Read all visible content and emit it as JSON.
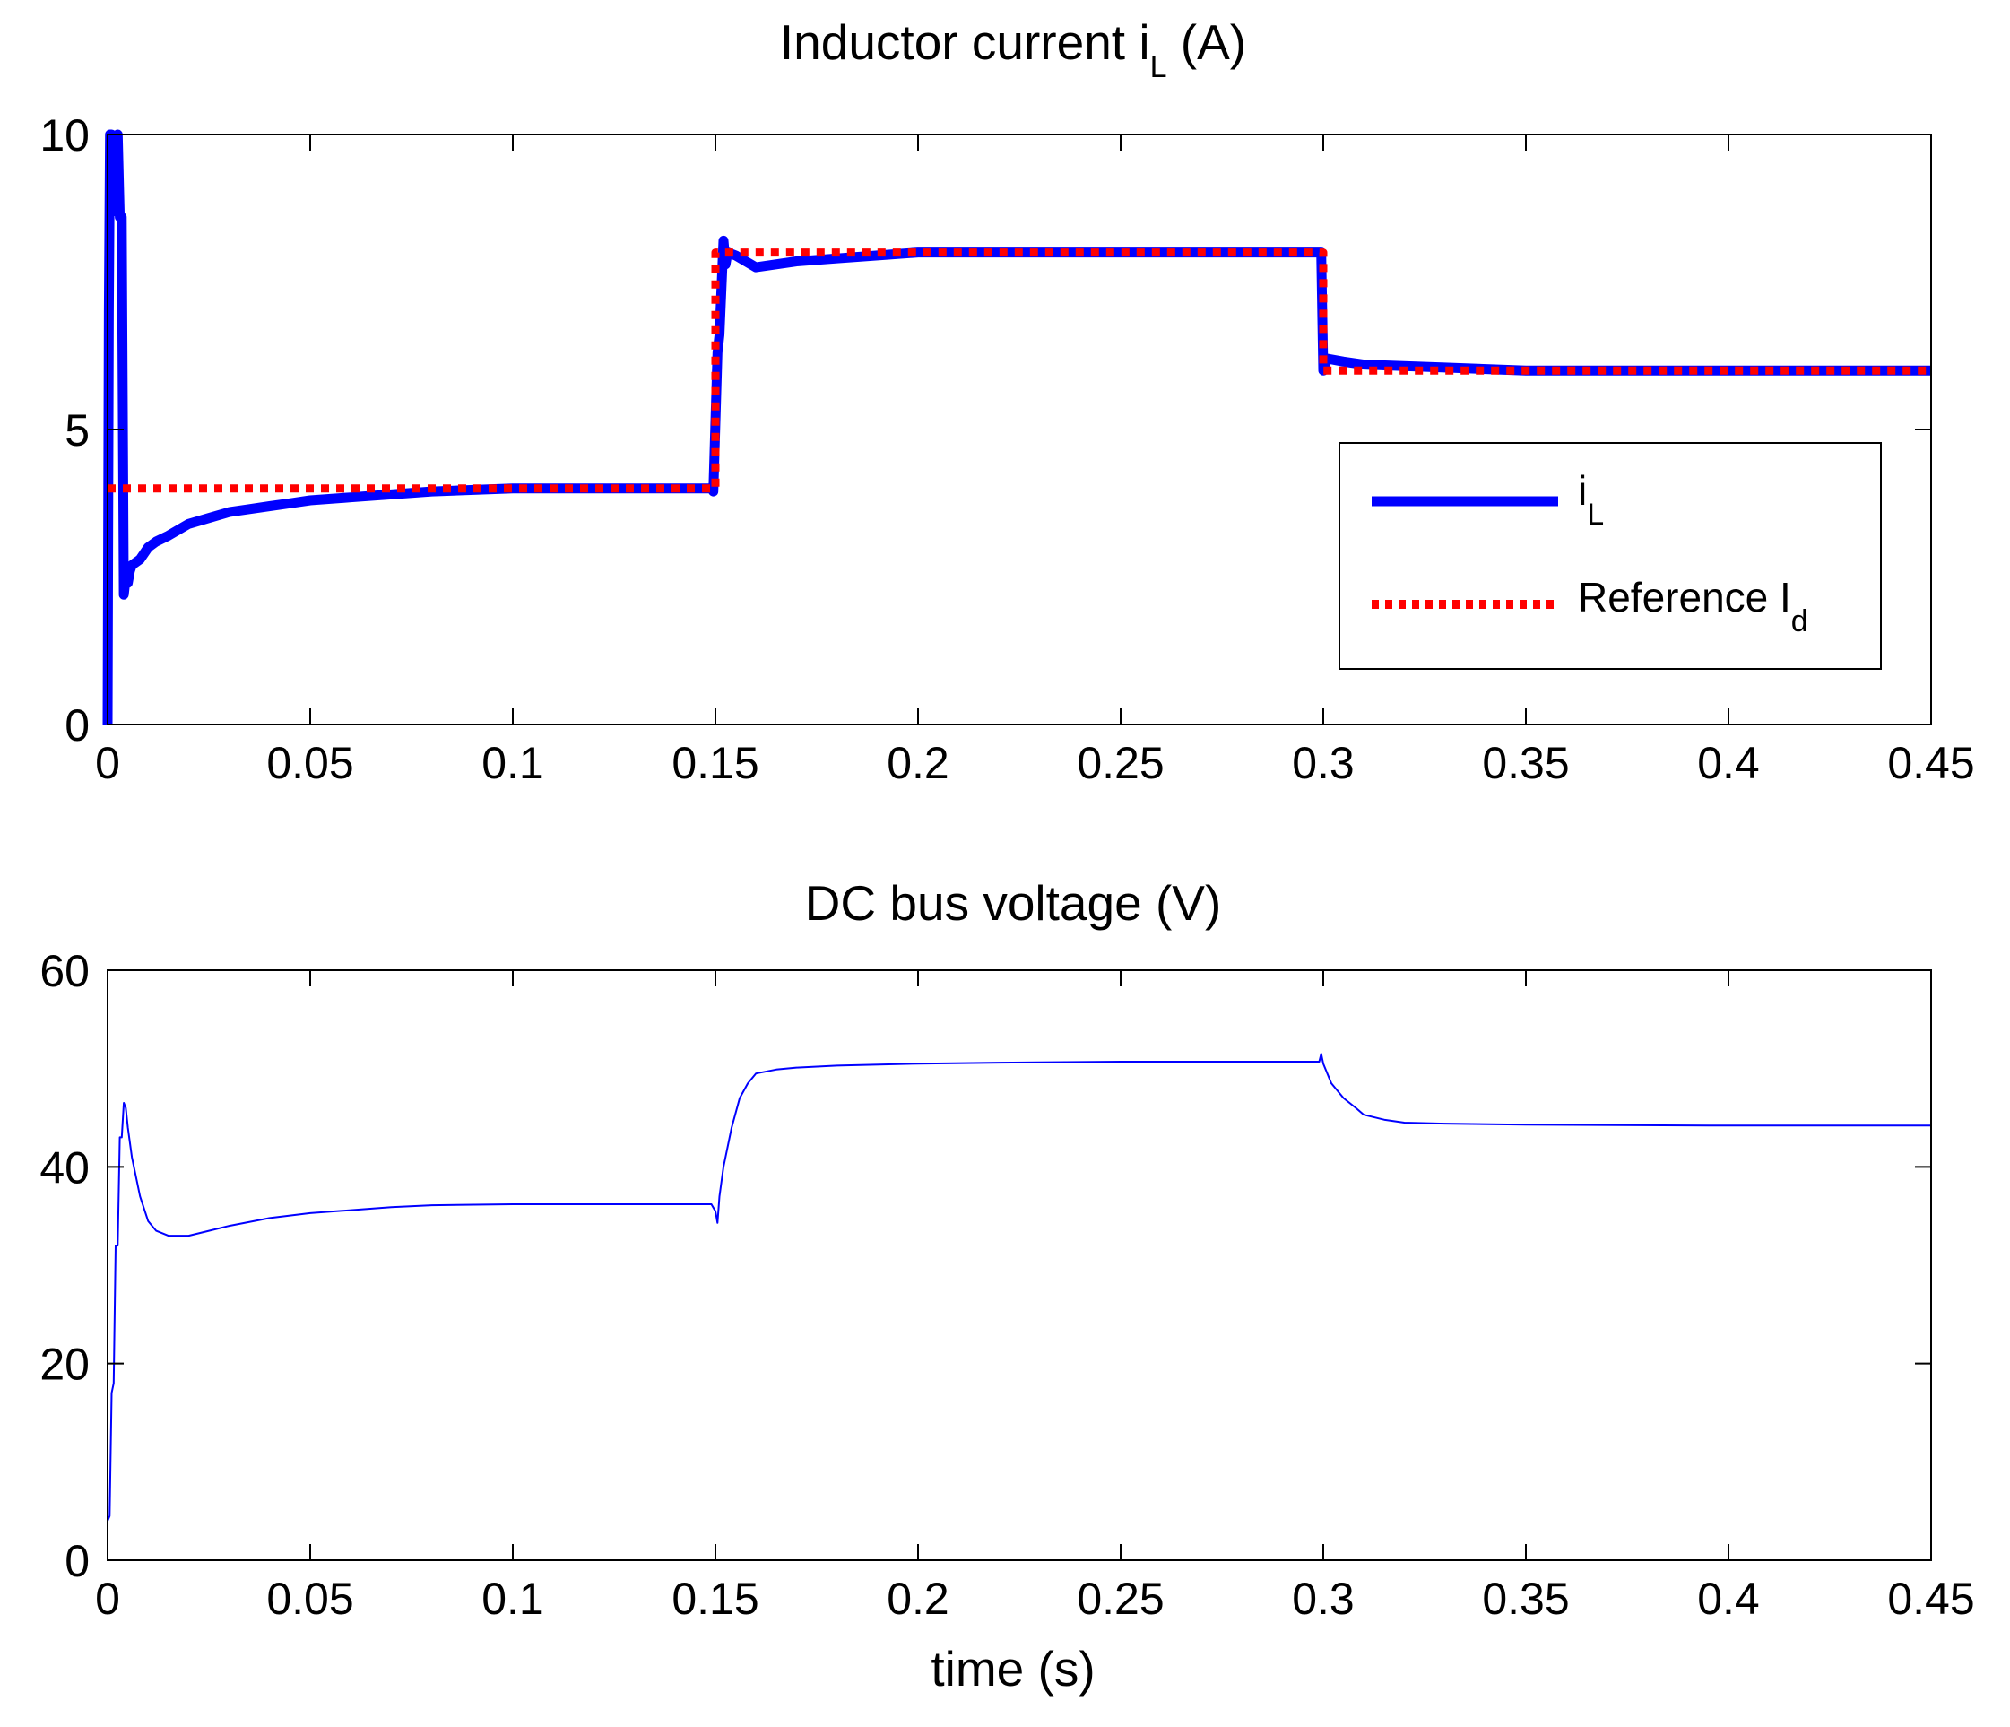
{
  "chart_data": [
    {
      "type": "line",
      "title": "Inductor current i",
      "title_subscript": "L",
      "title_suffix": " (A)",
      "xlabel": "",
      "ylabel": "",
      "xlim": [
        0,
        0.45
      ],
      "ylim": [
        0,
        10
      ],
      "xticks": [
        "0",
        "0.05",
        "0.1",
        "0.15",
        "0.2",
        "0.25",
        "0.3",
        "0.35",
        "0.4",
        "0.45"
      ],
      "yticks": [
        "0",
        "5",
        "10"
      ],
      "grid": false,
      "legend_position": "center-right",
      "legend": [
        {
          "label": "i",
          "subscript": "L",
          "color": "#0000ff",
          "style": "solid"
        },
        {
          "label": "Reference I",
          "subscript": "d",
          "color": "#ff0000",
          "style": "dotted"
        }
      ],
      "series": [
        {
          "name": "i_L",
          "color": "#0000ff",
          "x": [
            0,
            0.0003,
            0.0006,
            0.001,
            0.0015,
            0.002,
            0.0025,
            0.003,
            0.0035,
            0.004,
            0.0045,
            0.005,
            0.0055,
            0.006,
            0.008,
            0.01,
            0.012,
            0.015,
            0.02,
            0.025,
            0.03,
            0.035,
            0.04,
            0.045,
            0.05,
            0.06,
            0.07,
            0.08,
            0.1,
            0.12,
            0.14,
            0.149,
            0.1495,
            0.1505,
            0.151,
            0.152,
            0.1525,
            0.153,
            0.155,
            0.16,
            0.17,
            0.18,
            0.19,
            0.2,
            0.22,
            0.25,
            0.28,
            0.299,
            0.2995,
            0.3,
            0.301,
            0.305,
            0.31,
            0.33,
            0.35,
            0.4,
            0.45
          ],
          "y": [
            0,
            7,
            10,
            10,
            8.7,
            8.7,
            10,
            8.6,
            8.6,
            2.2,
            2.5,
            2.4,
            2.6,
            2.7,
            2.8,
            3.0,
            3.1,
            3.2,
            3.4,
            3.5,
            3.6,
            3.65,
            3.7,
            3.75,
            3.8,
            3.85,
            3.9,
            3.95,
            4.0,
            4.0,
            4.0,
            4.0,
            3.95,
            6.3,
            6.6,
            8.2,
            7.8,
            8.0,
            7.95,
            7.75,
            7.85,
            7.9,
            7.95,
            8.0,
            8.0,
            8.0,
            8.0,
            8.0,
            8.0,
            6.0,
            6.2,
            6.15,
            6.1,
            6.05,
            6.0,
            6.0,
            6.0
          ]
        },
        {
          "name": "Reference I_d",
          "color": "#ff0000",
          "x": [
            0,
            0.15,
            0.15,
            0.3,
            0.3,
            0.45
          ],
          "y": [
            4,
            4,
            8,
            8,
            6,
            6
          ]
        }
      ]
    },
    {
      "type": "line",
      "title": "DC bus voltage (V)",
      "xlabel": "time (s)",
      "ylabel": "",
      "xlim": [
        0,
        0.45
      ],
      "ylim": [
        0,
        60
      ],
      "xticks": [
        "0",
        "0.05",
        "0.1",
        "0.15",
        "0.2",
        "0.25",
        "0.3",
        "0.35",
        "0.4",
        "0.45"
      ],
      "yticks": [
        "0",
        "20",
        "40",
        "60"
      ],
      "grid": false,
      "series": [
        {
          "color": "#0000ff",
          "x": [
            0,
            0.0005,
            0.001,
            0.0015,
            0.002,
            0.0025,
            0.003,
            0.0035,
            0.004,
            0.0045,
            0.005,
            0.006,
            0.008,
            0.01,
            0.012,
            0.015,
            0.02,
            0.025,
            0.03,
            0.04,
            0.05,
            0.06,
            0.07,
            0.08,
            0.1,
            0.12,
            0.14,
            0.149,
            0.15,
            0.1505,
            0.151,
            0.152,
            0.154,
            0.156,
            0.158,
            0.16,
            0.165,
            0.17,
            0.18,
            0.2,
            0.22,
            0.25,
            0.28,
            0.299,
            0.2995,
            0.3,
            0.302,
            0.305,
            0.308,
            0.31,
            0.315,
            0.32,
            0.33,
            0.35,
            0.4,
            0.45
          ],
          "y": [
            4,
            4.5,
            17,
            18,
            32,
            32,
            43,
            43,
            46.5,
            46,
            44,
            41,
            37,
            34.5,
            33.5,
            33,
            33,
            33.5,
            34,
            34.8,
            35.3,
            35.6,
            35.9,
            36.1,
            36.2,
            36.2,
            36.2,
            36.2,
            35.5,
            34.3,
            37,
            40,
            44,
            47,
            48.5,
            49.5,
            49.9,
            50.1,
            50.3,
            50.5,
            50.6,
            50.7,
            50.7,
            50.7,
            51.5,
            50.5,
            48.5,
            47,
            46,
            45.3,
            44.8,
            44.5,
            44.4,
            44.3,
            44.2,
            44.2
          ]
        }
      ]
    }
  ]
}
